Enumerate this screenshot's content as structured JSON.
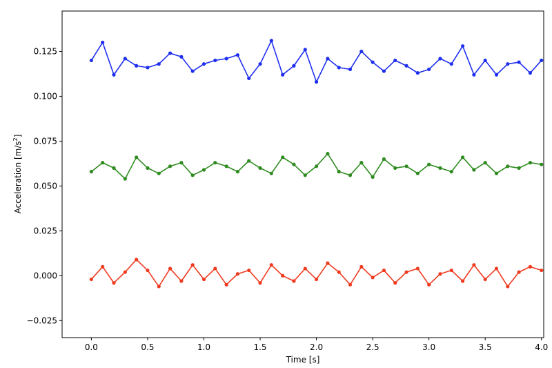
{
  "chart_data": {
    "type": "line",
    "title": "",
    "xlabel": "Time [s]",
    "ylabel_main": "Acceleration [m/s",
    "ylabel_sup": "2",
    "ylabel_tail": "]",
    "xlim": [
      -0.26,
      4.02
    ],
    "ylim": [
      -0.0345,
      0.1475
    ],
    "x_ticks": [
      {
        "value": 0.0,
        "label": "0.0"
      },
      {
        "value": 0.5,
        "label": "0.5"
      },
      {
        "value": 1.0,
        "label": "1.0"
      },
      {
        "value": 1.5,
        "label": "1.5"
      },
      {
        "value": 2.0,
        "label": "2.0"
      },
      {
        "value": 2.5,
        "label": "2.5"
      },
      {
        "value": 3.0,
        "label": "3.0"
      },
      {
        "value": 3.5,
        "label": "3.5"
      },
      {
        "value": 4.0,
        "label": "4.0"
      }
    ],
    "y_ticks": [
      {
        "value": -0.025,
        "label": "−0.025"
      },
      {
        "value": 0.0,
        "label": "0.000"
      },
      {
        "value": 0.025,
        "label": "0.025"
      },
      {
        "value": 0.05,
        "label": "0.050"
      },
      {
        "value": 0.075,
        "label": "0.075"
      },
      {
        "value": 0.1,
        "label": "0.100"
      },
      {
        "value": 0.125,
        "label": "0.125"
      }
    ],
    "grid": false,
    "legend": "none",
    "series": [
      {
        "color": "#1f2ff0",
        "x": [
          0.0,
          0.1,
          0.2,
          0.3,
          0.4,
          0.5,
          0.6,
          0.7,
          0.8,
          0.9,
          1.0,
          1.1,
          1.2,
          1.3,
          1.4,
          1.5,
          1.6,
          1.7,
          1.8,
          1.9,
          2.0,
          2.1,
          2.2,
          2.3,
          2.4,
          2.5,
          2.6,
          2.7,
          2.8,
          2.9,
          3.0,
          3.1,
          3.2,
          3.3,
          3.4,
          3.5,
          3.6,
          3.7,
          3.8,
          3.9,
          4.0
        ],
        "y": [
          0.12,
          0.13,
          0.112,
          0.121,
          0.117,
          0.116,
          0.118,
          0.124,
          0.122,
          0.114,
          0.118,
          0.12,
          0.121,
          0.123,
          0.11,
          0.118,
          0.131,
          0.112,
          0.117,
          0.126,
          0.108,
          0.121,
          0.116,
          0.115,
          0.125,
          0.119,
          0.114,
          0.12,
          0.117,
          0.113,
          0.115,
          0.121,
          0.118,
          0.128,
          0.112,
          0.12,
          0.112,
          0.118,
          0.119,
          0.113,
          0.12
        ]
      },
      {
        "color": "#2e8b1f",
        "x": [
          0.0,
          0.1,
          0.2,
          0.3,
          0.4,
          0.5,
          0.6,
          0.7,
          0.8,
          0.9,
          1.0,
          1.1,
          1.2,
          1.3,
          1.4,
          1.5,
          1.6,
          1.7,
          1.8,
          1.9,
          2.0,
          2.1,
          2.2,
          2.3,
          2.4,
          2.5,
          2.6,
          2.7,
          2.8,
          2.9,
          3.0,
          3.1,
          3.2,
          3.3,
          3.4,
          3.5,
          3.6,
          3.7,
          3.8,
          3.9,
          4.0
        ],
        "y": [
          0.058,
          0.063,
          0.06,
          0.054,
          0.066,
          0.06,
          0.057,
          0.061,
          0.063,
          0.056,
          0.059,
          0.063,
          0.061,
          0.058,
          0.064,
          0.06,
          0.057,
          0.066,
          0.062,
          0.056,
          0.061,
          0.068,
          0.058,
          0.056,
          0.063,
          0.055,
          0.065,
          0.06,
          0.061,
          0.057,
          0.062,
          0.06,
          0.058,
          0.066,
          0.059,
          0.063,
          0.057,
          0.061,
          0.06,
          0.063,
          0.062
        ]
      },
      {
        "color": "#f03a1f",
        "x": [
          0.0,
          0.1,
          0.2,
          0.3,
          0.4,
          0.5,
          0.6,
          0.7,
          0.8,
          0.9,
          1.0,
          1.1,
          1.2,
          1.3,
          1.4,
          1.5,
          1.6,
          1.7,
          1.8,
          1.9,
          2.0,
          2.1,
          2.2,
          2.3,
          2.4,
          2.5,
          2.6,
          2.7,
          2.8,
          2.9,
          3.0,
          3.1,
          3.2,
          3.3,
          3.4,
          3.5,
          3.6,
          3.7,
          3.8,
          3.9,
          4.0
        ],
        "y": [
          -0.002,
          0.005,
          -0.004,
          0.002,
          0.009,
          0.003,
          -0.006,
          0.004,
          -0.003,
          0.006,
          -0.002,
          0.004,
          -0.005,
          0.001,
          0.003,
          -0.004,
          0.006,
          0.0,
          -0.003,
          0.004,
          -0.002,
          0.007,
          0.002,
          -0.005,
          0.005,
          -0.001,
          0.003,
          -0.004,
          0.002,
          0.004,
          -0.005,
          0.001,
          0.003,
          -0.003,
          0.006,
          -0.002,
          0.004,
          -0.006,
          0.002,
          0.005,
          0.003
        ]
      }
    ]
  }
}
